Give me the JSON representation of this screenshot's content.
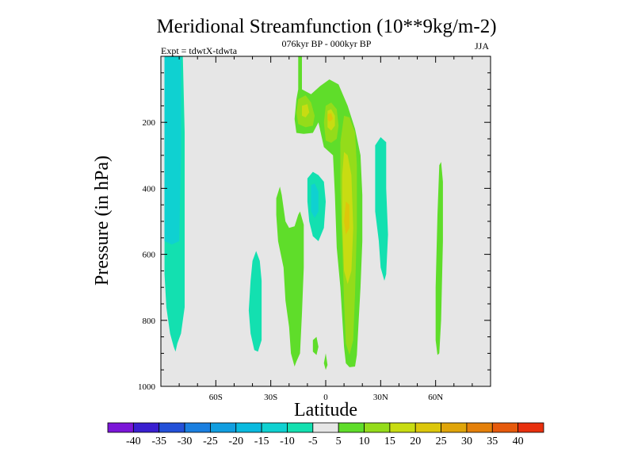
{
  "chart_data": {
    "type": "contour",
    "title": "Meridional Streamfunction (10**9kg/m-2)",
    "subtitle": "076kyr BP - 000kyr BP",
    "left_label": "Expt = tdwtX-tdwta",
    "right_label": "JJA",
    "xlabel": "Latitude",
    "ylabel": "Pressure (in hPa)",
    "xlim": [
      -90,
      90
    ],
    "ylim": [
      0,
      1000
    ],
    "y_inverted": true,
    "x_ticks": [
      -60,
      -30,
      0,
      30,
      60
    ],
    "x_tick_labels": [
      "60S",
      "30S",
      "0",
      "30N",
      "60N"
    ],
    "y_ticks": [
      200,
      400,
      600,
      800,
      1000
    ],
    "y_tick_labels": [
      "200",
      "400",
      "600",
      "800",
      "1000"
    ],
    "background_color": "#e6e6e6",
    "colorbar": {
      "levels": [
        -40,
        -35,
        -30,
        -25,
        -20,
        -15,
        -10,
        -5,
        5,
        10,
        15,
        20,
        25,
        30,
        35,
        40
      ],
      "level_labels": [
        "-40",
        "-35",
        "-30",
        "-25",
        "-20",
        "-15",
        "-10",
        "-5",
        "5",
        "10",
        "15",
        "20",
        "25",
        "30",
        "35",
        "40"
      ],
      "colors": [
        "#7b16d8",
        "#3a1fd0",
        "#2350d8",
        "#1a7fe0",
        "#119ee0",
        "#0abadf",
        "#0fd1d1",
        "#13e0b0",
        "#e6e6e6",
        "#5fdd2a",
        "#94dc1a",
        "#c8dc12",
        "#dcc70b",
        "#e0a50a",
        "#e4800a",
        "#e65a0c",
        "#e8300e"
      ]
    },
    "regions": [
      {
        "name": "south-polar-cell",
        "level": -10,
        "points": [
          [
            -88,
            0
          ],
          [
            -78,
            0
          ],
          [
            -77,
            230
          ],
          [
            -77,
            760
          ],
          [
            -79,
            840
          ],
          [
            -81,
            870
          ],
          [
            -82,
            895
          ],
          [
            -83,
            880
          ],
          [
            -85,
            840
          ],
          [
            -87,
            760
          ],
          [
            -88,
            660
          ],
          [
            -88,
            300
          ]
        ]
      },
      {
        "name": "south-polar-cell-core",
        "level": -15,
        "points": [
          [
            -88,
            0
          ],
          [
            -79,
            0
          ],
          [
            -79,
            300
          ],
          [
            -80,
            560
          ],
          [
            -84,
            570
          ],
          [
            -88,
            560
          ]
        ]
      },
      {
        "name": "subtropical-southern-cell",
        "level": -10,
        "points": [
          [
            -40,
            620
          ],
          [
            -38,
            590
          ],
          [
            -36,
            620
          ],
          [
            -35,
            680
          ],
          [
            -35,
            860
          ],
          [
            -37,
            895
          ],
          [
            -39,
            890
          ],
          [
            -41,
            840
          ],
          [
            -42,
            770
          ],
          [
            -41,
            680
          ]
        ]
      },
      {
        "name": "southern-green-band",
        "level": 5,
        "points": [
          [
            -27,
            430
          ],
          [
            -25,
            395
          ],
          [
            -24,
            420
          ],
          [
            -22,
            500
          ],
          [
            -20,
            520
          ],
          [
            -17,
            515
          ],
          [
            -15,
            480
          ],
          [
            -14,
            470
          ],
          [
            -12,
            510
          ],
          [
            -12,
            640
          ],
          [
            -13,
            780
          ],
          [
            -14,
            900
          ],
          [
            -16,
            925
          ],
          [
            -17,
            940
          ],
          [
            -19,
            900
          ],
          [
            -20,
            820
          ],
          [
            -22,
            740
          ],
          [
            -23,
            640
          ],
          [
            -26,
            560
          ],
          [
            -27,
            480
          ]
        ]
      },
      {
        "name": "equatorial-plume",
        "level": 5,
        "points": [
          [
            -15,
            0
          ],
          [
            -13,
            0
          ],
          [
            -13,
            100
          ],
          [
            -8,
            115
          ],
          [
            -3,
            90
          ],
          [
            2,
            70
          ],
          [
            7,
            85
          ],
          [
            12,
            150
          ],
          [
            16,
            220
          ],
          [
            19,
            300
          ],
          [
            20,
            420
          ],
          [
            20,
            560
          ],
          [
            19,
            700
          ],
          [
            18,
            800
          ],
          [
            17,
            905
          ],
          [
            16,
            940
          ],
          [
            13,
            942
          ],
          [
            11,
            930
          ],
          [
            10,
            880
          ],
          [
            8,
            700
          ],
          [
            6,
            580
          ],
          [
            5,
            420
          ],
          [
            4,
            300
          ],
          [
            -1,
            275
          ],
          [
            -4,
            200
          ],
          [
            -7,
            232
          ],
          [
            -12,
            235
          ],
          [
            -16,
            232
          ],
          [
            -17,
            190
          ],
          [
            -16,
            130
          ],
          [
            -15,
            100
          ]
        ]
      },
      {
        "name": "equatorial-plume-10",
        "level": 10,
        "points": [
          [
            -15,
            130
          ],
          [
            -11,
            118
          ],
          [
            -8,
            140
          ],
          [
            -6,
            180
          ],
          [
            -7,
            210
          ],
          [
            -11,
            215
          ],
          [
            -15,
            205
          ],
          [
            -16,
            170
          ]
        ]
      },
      {
        "name": "equatorial-plume-10b",
        "level": 10,
        "points": [
          [
            0,
            150
          ],
          [
            3,
            140
          ],
          [
            6,
            160
          ],
          [
            7,
            210
          ],
          [
            6,
            250
          ],
          [
            3,
            262
          ],
          [
            0,
            255
          ],
          [
            -1,
            200
          ]
        ]
      },
      {
        "name": "equatorial-plume-10c",
        "level": 10,
        "points": [
          [
            10,
            180
          ],
          [
            13,
            185
          ],
          [
            16,
            230
          ],
          [
            17,
            330
          ],
          [
            17,
            520
          ],
          [
            16,
            720
          ],
          [
            15,
            860
          ],
          [
            13,
            905
          ],
          [
            11,
            870
          ],
          [
            10,
            740
          ],
          [
            9,
            560
          ],
          [
            8,
            400
          ],
          [
            8,
            260
          ]
        ]
      },
      {
        "name": "equatorial-plume-15",
        "level": 15,
        "points": [
          [
            1,
            165
          ],
          [
            3,
            160
          ],
          [
            5,
            180
          ],
          [
            5,
            210
          ],
          [
            3,
            225
          ],
          [
            1,
            215
          ]
        ]
      },
      {
        "name": "equatorial-plume-15b",
        "level": 15,
        "points": [
          [
            -13,
            150
          ],
          [
            -10,
            145
          ],
          [
            -9,
            170
          ],
          [
            -11,
            185
          ],
          [
            -13,
            180
          ]
        ]
      },
      {
        "name": "equatorial-plume-15c",
        "level": 15,
        "points": [
          [
            10,
            290
          ],
          [
            12,
            300
          ],
          [
            14,
            360
          ],
          [
            15,
            520
          ],
          [
            14,
            650
          ],
          [
            12,
            690
          ],
          [
            10,
            650
          ],
          [
            9,
            500
          ],
          [
            9,
            360
          ]
        ]
      },
      {
        "name": "equatorial-core-20",
        "level": 20,
        "points": [
          [
            1,
            175
          ],
          [
            3,
            172
          ],
          [
            4,
            190
          ],
          [
            2,
            198
          ],
          [
            1,
            190
          ]
        ]
      },
      {
        "name": "equatorial-core-20b",
        "level": 20,
        "points": [
          [
            11,
            440
          ],
          [
            13,
            450
          ],
          [
            13,
            520
          ],
          [
            11,
            540
          ],
          [
            10,
            500
          ]
        ]
      },
      {
        "name": "equatorial-negative",
        "level": -10,
        "points": [
          [
            -10,
            370
          ],
          [
            -7,
            350
          ],
          [
            -4,
            360
          ],
          [
            -1,
            380
          ],
          [
            0,
            440
          ],
          [
            -1,
            520
          ],
          [
            -4,
            560
          ],
          [
            -7,
            545
          ],
          [
            -9,
            500
          ],
          [
            -10,
            440
          ]
        ]
      },
      {
        "name": "equatorial-negative-core",
        "level": -15,
        "points": [
          [
            -8,
            390
          ],
          [
            -6,
            385
          ],
          [
            -4,
            410
          ],
          [
            -4,
            470
          ],
          [
            -6,
            490
          ],
          [
            -8,
            470
          ]
        ]
      },
      {
        "name": "equatorial-small-cell",
        "level": 5,
        "points": [
          [
            -7,
            860
          ],
          [
            -5,
            850
          ],
          [
            -4,
            880
          ],
          [
            -5,
            905
          ],
          [
            -7,
            895
          ]
        ]
      },
      {
        "name": "equatorial-small-cell-b",
        "level": 5,
        "points": [
          [
            -1,
            930
          ],
          [
            0,
            900
          ],
          [
            1,
            935
          ],
          [
            0,
            950
          ]
        ]
      },
      {
        "name": "northern-subtropical-cell",
        "level": -10,
        "points": [
          [
            27,
            270
          ],
          [
            30,
            245
          ],
          [
            33,
            260
          ],
          [
            33,
            400
          ],
          [
            34,
            540
          ],
          [
            33,
            660
          ],
          [
            32,
            680
          ],
          [
            30,
            640
          ],
          [
            29,
            560
          ],
          [
            27,
            470
          ],
          [
            27,
            360
          ]
        ]
      },
      {
        "name": "northern-midlatitude-band",
        "level": 5,
        "points": [
          [
            62,
            330
          ],
          [
            63,
            320
          ],
          [
            64,
            380
          ],
          [
            64,
            560
          ],
          [
            63,
            800
          ],
          [
            62,
            900
          ],
          [
            61,
            905
          ],
          [
            60,
            860
          ],
          [
            60,
            700
          ],
          [
            61,
            480
          ]
        ]
      }
    ]
  }
}
